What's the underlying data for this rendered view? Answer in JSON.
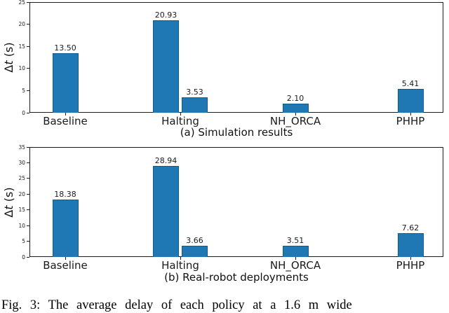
{
  "figure": {
    "caption": "Fig. 3: The average delay of each policy at a 1.6 m wide"
  },
  "chart_data": [
    {
      "type": "bar",
      "caption": "(a) Simulation results",
      "ylabel": "Δt (s)",
      "ylabel_delta": "Δ",
      "ylabel_var": "t",
      "ylabel_unit": " (s)",
      "ylim": [
        0,
        25
      ],
      "yticks": [
        0,
        5,
        10,
        15,
        20,
        25
      ],
      "grid": false,
      "legend": "none",
      "bar_color": "#1f77b4",
      "categories": [
        "Baseline",
        "Halting",
        "NH_ORCA",
        "PHHP"
      ],
      "groups": [
        {
          "category": "Baseline",
          "values": [
            13.5
          ]
        },
        {
          "category": "Halting",
          "values": [
            20.93,
            3.53
          ]
        },
        {
          "category": "NH_ORCA",
          "values": [
            2.1
          ]
        },
        {
          "category": "PHHP",
          "values": [
            5.41
          ]
        }
      ]
    },
    {
      "type": "bar",
      "caption": "(b) Real-robot deployments",
      "ylabel": "Δt (s)",
      "ylabel_delta": "Δ",
      "ylabel_var": "t",
      "ylabel_unit": " (s)",
      "ylim": [
        0,
        35
      ],
      "yticks": [
        0,
        5,
        10,
        15,
        20,
        25,
        30,
        35
      ],
      "grid": false,
      "legend": "none",
      "bar_color": "#1f77b4",
      "categories": [
        "Baseline",
        "Halting",
        "NH_ORCA",
        "PHHP"
      ],
      "groups": [
        {
          "category": "Baseline",
          "values": [
            18.38
          ]
        },
        {
          "category": "Halting",
          "values": [
            28.94,
            3.66
          ]
        },
        {
          "category": "NH_ORCA",
          "values": [
            3.51
          ]
        },
        {
          "category": "PHHP",
          "values": [
            7.62
          ]
        }
      ]
    }
  ]
}
